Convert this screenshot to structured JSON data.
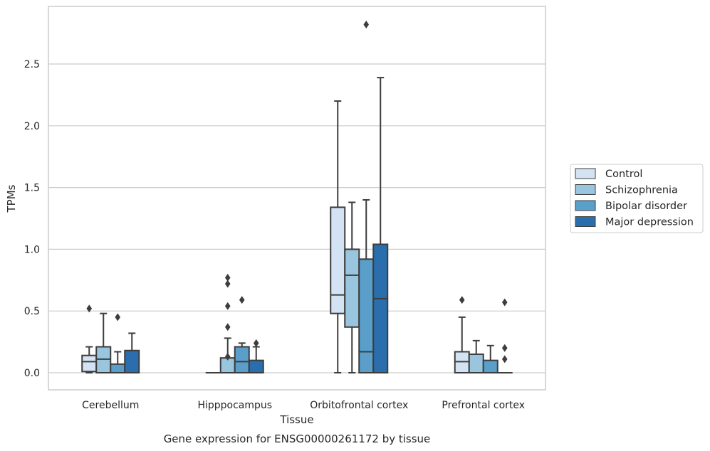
{
  "chart_data": {
    "type": "box",
    "title": "Gene expression for ENSG00000261172 by tissue",
    "xlabel": "Tissue",
    "ylabel": "TPMs",
    "ylim": [
      -0.14,
      2.97
    ],
    "yticks": [
      "0.0",
      "0.5",
      "1.0",
      "1.5",
      "2.0",
      "2.5"
    ],
    "grid": true,
    "legend_position": "right",
    "categories": [
      "Cerebellum",
      "Hipppocampus",
      "Orbitofrontal cortex",
      "Prefrontal cortex"
    ],
    "series": [
      {
        "name": "Control",
        "color": "#d3e3f3",
        "boxes": [
          {
            "q1": 0.01,
            "median": 0.09,
            "q3": 0.14,
            "lo": 0.0,
            "hi": 0.21,
            "outliers": [
              0.52
            ]
          },
          {
            "q1": 0.0,
            "median": 0.0,
            "q3": 0.0,
            "lo": 0.0,
            "hi": 0.0,
            "outliers": []
          },
          {
            "q1": 0.48,
            "median": 0.63,
            "q3": 1.34,
            "lo": 0.0,
            "hi": 2.2,
            "outliers": []
          },
          {
            "q1": 0.0,
            "median": 0.09,
            "q3": 0.17,
            "lo": 0.0,
            "hi": 0.45,
            "outliers": [
              0.59
            ]
          }
        ]
      },
      {
        "name": "Schizophrenia",
        "color": "#9ac5de",
        "boxes": [
          {
            "q1": 0.0,
            "median": 0.11,
            "q3": 0.21,
            "lo": 0.0,
            "hi": 0.48,
            "outliers": []
          },
          {
            "q1": 0.0,
            "median": 0.0,
            "q3": 0.12,
            "lo": 0.0,
            "hi": 0.28,
            "outliers": [
              0.77,
              0.72,
              0.54,
              0.37,
              0.13
            ]
          },
          {
            "q1": 0.37,
            "median": 0.79,
            "q3": 1.0,
            "lo": 0.0,
            "hi": 1.38,
            "outliers": []
          },
          {
            "q1": 0.0,
            "median": 0.0,
            "q3": 0.15,
            "lo": 0.0,
            "hi": 0.26,
            "outliers": []
          }
        ]
      },
      {
        "name": "Bipolar disorder",
        "color": "#5a9fca",
        "boxes": [
          {
            "q1": 0.0,
            "median": 0.0,
            "q3": 0.07,
            "lo": 0.0,
            "hi": 0.17,
            "outliers": [
              0.45
            ]
          },
          {
            "q1": 0.0,
            "median": 0.09,
            "q3": 0.21,
            "lo": 0.0,
            "hi": 0.24,
            "outliers": [
              0.59
            ]
          },
          {
            "q1": 0.0,
            "median": 0.17,
            "q3": 0.92,
            "lo": 0.0,
            "hi": 1.4,
            "outliers": [
              2.82
            ]
          },
          {
            "q1": 0.0,
            "median": 0.0,
            "q3": 0.1,
            "lo": 0.0,
            "hi": 0.22,
            "outliers": []
          }
        ]
      },
      {
        "name": "Major depression",
        "color": "#2b6ead",
        "boxes": [
          {
            "q1": 0.0,
            "median": 0.0,
            "q3": 0.18,
            "lo": 0.0,
            "hi": 0.32,
            "outliers": []
          },
          {
            "q1": 0.0,
            "median": 0.0,
            "q3": 0.1,
            "lo": 0.0,
            "hi": 0.21,
            "outliers": [
              0.24
            ]
          },
          {
            "q1": 0.0,
            "median": 0.6,
            "q3": 1.04,
            "lo": 0.0,
            "hi": 2.39,
            "outliers": []
          },
          {
            "q1": 0.0,
            "median": 0.0,
            "q3": 0.0,
            "lo": 0.0,
            "hi": 0.0,
            "outliers": [
              0.57,
              0.2,
              0.11
            ]
          }
        ]
      }
    ]
  }
}
